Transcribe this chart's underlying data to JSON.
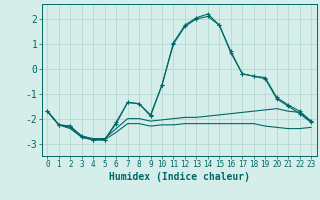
{
  "xlabel": "Humidex (Indice chaleur)",
  "bg_color": "#d5eeea",
  "line_color": "#006868",
  "grid_color": "#b8d8d4",
  "xlim": [
    -0.5,
    23.5
  ],
  "ylim": [
    -3.5,
    2.6
  ],
  "xticks": [
    0,
    1,
    2,
    3,
    4,
    5,
    6,
    7,
    8,
    9,
    10,
    11,
    12,
    13,
    14,
    15,
    16,
    17,
    18,
    19,
    20,
    21,
    22,
    23
  ],
  "yticks": [
    -3,
    -2,
    -1,
    0,
    1,
    2
  ],
  "series": [
    {
      "x": [
        0,
        1,
        2,
        3,
        4,
        5,
        6,
        7,
        8,
        9,
        10,
        11,
        12,
        13,
        14,
        15,
        16,
        17,
        18,
        19,
        20,
        21,
        22,
        23
      ],
      "y": [
        -1.7,
        -2.25,
        -2.4,
        -2.75,
        -2.85,
        -2.85,
        -2.55,
        -2.2,
        -2.2,
        -2.3,
        -2.25,
        -2.25,
        -2.2,
        -2.2,
        -2.2,
        -2.2,
        -2.2,
        -2.2,
        -2.2,
        -2.3,
        -2.35,
        -2.4,
        -2.4,
        -2.35
      ],
      "marker": false
    },
    {
      "x": [
        0,
        1,
        2,
        3,
        4,
        5,
        6,
        7,
        8,
        9,
        10,
        11,
        12,
        13,
        14,
        15,
        16,
        17,
        18,
        19,
        20,
        21,
        22,
        23
      ],
      "y": [
        -1.7,
        -2.25,
        -2.35,
        -2.7,
        -2.8,
        -2.8,
        -2.4,
        -2.0,
        -2.0,
        -2.1,
        -2.05,
        -2.0,
        -1.95,
        -1.95,
        -1.9,
        -1.85,
        -1.8,
        -1.75,
        -1.7,
        -1.65,
        -1.6,
        -1.7,
        -1.75,
        -2.1
      ],
      "marker": false
    },
    {
      "x": [
        0,
        1,
        2,
        3,
        4,
        5,
        6,
        7,
        8,
        9,
        10,
        11,
        12,
        13,
        14,
        15,
        16,
        17,
        18,
        19,
        20,
        21,
        22,
        23
      ],
      "y": [
        -1.7,
        -2.25,
        -2.3,
        -2.7,
        -2.85,
        -2.85,
        -2.15,
        -1.35,
        -1.4,
        -1.85,
        -0.65,
        1.0,
        1.7,
        2.0,
        2.1,
        1.75,
        0.7,
        -0.2,
        -0.3,
        -0.35,
        -1.15,
        -1.45,
        -1.7,
        -2.1
      ],
      "marker": true
    },
    {
      "x": [
        0,
        1,
        2,
        3,
        4,
        5,
        6,
        7,
        8,
        9,
        10,
        11,
        12,
        13,
        14,
        15,
        16,
        17,
        18,
        19,
        20,
        21,
        22,
        23
      ],
      "y": [
        -1.7,
        -2.25,
        -2.3,
        -2.75,
        -2.85,
        -2.85,
        -2.2,
        -1.35,
        -1.4,
        -1.9,
        -0.65,
        1.05,
        1.75,
        2.05,
        2.2,
        1.75,
        0.65,
        -0.2,
        -0.3,
        -0.4,
        -1.2,
        -1.5,
        -1.8,
        -2.15
      ],
      "marker": true
    }
  ]
}
